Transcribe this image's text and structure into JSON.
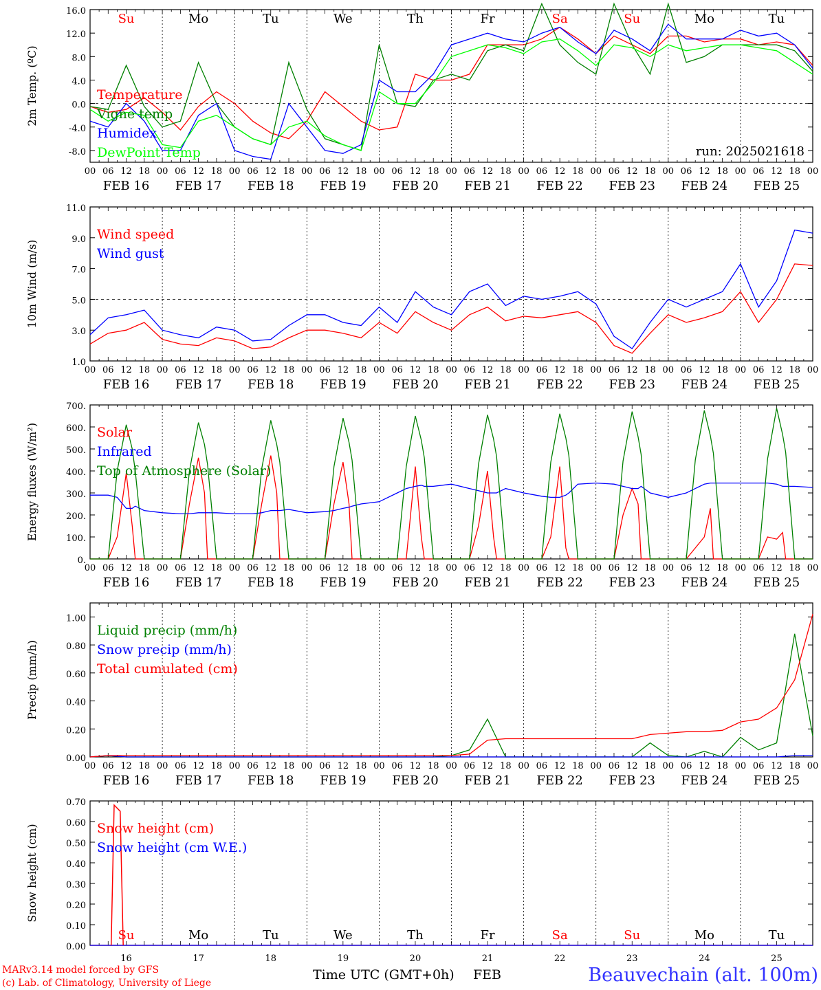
{
  "chart_data": [
    {
      "type": "line",
      "ylabel": "2m Temp. (ºC)",
      "ylim": [
        -10,
        16
      ],
      "yticks": [
        "16.0",
        "12.0",
        "8.0",
        "4.0",
        "0.0",
        "-4.0",
        "-8.0"
      ],
      "ytick_values": [
        16,
        12,
        8,
        4,
        0,
        -4,
        -8
      ],
      "ref_line": 0,
      "annotation": "run: 2025021618",
      "day_labels": [
        "Su",
        "Mo",
        "Tu",
        "We",
        "Th",
        "Fr",
        "Sa",
        "Su",
        "Mo",
        "Tu"
      ],
      "x_hours": [
        0,
        6,
        12,
        18,
        24,
        30,
        36,
        42,
        48,
        54,
        60,
        66,
        72,
        78,
        84,
        90,
        96,
        102,
        108,
        114,
        120,
        126,
        132,
        138,
        144,
        150,
        156,
        162,
        168,
        174,
        180,
        186,
        192,
        198,
        204,
        210,
        216,
        222,
        228,
        234,
        240
      ],
      "series": [
        {
          "name": "Temperature",
          "color": "#ff0000",
          "values": [
            -0.5,
            -1.5,
            -1.0,
            1.0,
            -1.5,
            -4.5,
            -0.5,
            2.0,
            0.0,
            -3.0,
            -5.0,
            -6.0,
            -3.0,
            2.0,
            -0.5,
            -3.0,
            -4.5,
            -4.0,
            5.0,
            4.0,
            4.0,
            5.0,
            10.0,
            10.0,
            10.0,
            11.0,
            13.0,
            11.0,
            8.5,
            11.5,
            10.0,
            8.5,
            11.5,
            11.5,
            10.5,
            11.0,
            11.0,
            10.0,
            10.5,
            10.0,
            6.5
          ]
        },
        {
          "name": "Vigne temp",
          "color": "#008000",
          "values": [
            -0.5,
            -1.0,
            6.5,
            -0.5,
            -4.0,
            -3.0,
            7.0,
            0.0,
            -4.0,
            -6.0,
            -7.0,
            7.0,
            -1.0,
            -6.0,
            -7.0,
            -8.0,
            10.0,
            0.0,
            -0.5,
            4.0,
            5.0,
            4.0,
            9.0,
            10.0,
            9.0,
            17.0,
            10.0,
            7.0,
            5.0,
            17.0,
            10.0,
            5.0,
            17.0,
            7.0,
            8.0,
            10.0,
            10.0,
            10.0,
            10.0,
            9.0,
            5.5
          ]
        },
        {
          "name": "Humidex",
          "color": "#0000ff",
          "values": [
            -3.0,
            -4.0,
            0.0,
            -3.0,
            -8.0,
            -8.0,
            -2.0,
            0.0,
            -8.0,
            -9.0,
            -9.5,
            0.0,
            -4.0,
            -8.0,
            -8.5,
            -7.0,
            4.0,
            2.0,
            2.0,
            5.0,
            10.0,
            11.0,
            12.0,
            11.0,
            10.5,
            12.0,
            13.0,
            10.5,
            8.5,
            12.5,
            11.0,
            9.0,
            13.5,
            11.0,
            11.0,
            11.0,
            12.5,
            11.5,
            12.0,
            10.0,
            6.0
          ]
        },
        {
          "name": "DewPoint Temp",
          "color": "#00ff00",
          "values": [
            -1.0,
            -3.0,
            -1.5,
            -2.0,
            -7.0,
            -7.5,
            -3.0,
            -2.0,
            -4.0,
            -6.0,
            -7.0,
            -4.0,
            -3.0,
            -5.5,
            -7.0,
            -8.0,
            2.0,
            0.0,
            0.0,
            3.5,
            8.0,
            9.0,
            10.0,
            9.5,
            8.5,
            10.5,
            11.0,
            9.0,
            6.5,
            10.0,
            9.5,
            8.0,
            10.0,
            9.0,
            9.5,
            10.0,
            10.0,
            9.5,
            9.0,
            7.0,
            5.0
          ]
        }
      ]
    },
    {
      "type": "line",
      "ylabel": "10m Wind (m/s)",
      "ylim": [
        1,
        11
      ],
      "yticks": [
        "11.0",
        "9.0",
        "7.0",
        "5.0",
        "3.0",
        "1.0"
      ],
      "ytick_values": [
        11,
        9,
        7,
        5,
        3,
        1
      ],
      "ref_line": 5,
      "x_hours": [
        0,
        6,
        12,
        18,
        24,
        30,
        36,
        42,
        48,
        54,
        60,
        66,
        72,
        78,
        84,
        90,
        96,
        102,
        108,
        114,
        120,
        126,
        132,
        138,
        144,
        150,
        156,
        162,
        168,
        174,
        180,
        186,
        192,
        198,
        204,
        210,
        216,
        222,
        228,
        234,
        240
      ],
      "series": [
        {
          "name": "Wind speed",
          "color": "#ff0000",
          "values": [
            2.1,
            2.8,
            3.0,
            3.5,
            2.4,
            2.1,
            2.0,
            2.5,
            2.3,
            1.8,
            1.9,
            2.5,
            3.0,
            3.0,
            2.8,
            2.5,
            3.5,
            2.8,
            4.2,
            3.5,
            3.0,
            4.0,
            4.5,
            3.6,
            3.9,
            3.8,
            4.0,
            4.2,
            3.5,
            2.0,
            1.5,
            2.8,
            4.0,
            3.5,
            3.8,
            4.2,
            5.5,
            3.5,
            5.0,
            7.3,
            7.2
          ]
        },
        {
          "name": "Wind gust",
          "color": "#0000ff",
          "values": [
            2.7,
            3.8,
            4.0,
            4.3,
            3.0,
            2.7,
            2.5,
            3.2,
            3.0,
            2.3,
            2.4,
            3.3,
            4.0,
            4.0,
            3.5,
            3.3,
            4.5,
            3.5,
            5.5,
            4.5,
            4.0,
            5.5,
            6.0,
            4.6,
            5.2,
            5.0,
            5.2,
            5.5,
            4.7,
            2.6,
            1.8,
            3.5,
            5.0,
            4.5,
            5.0,
            5.5,
            7.3,
            4.5,
            6.2,
            9.5,
            9.3
          ]
        }
      ]
    },
    {
      "type": "line",
      "ylabel": "Energy fluxes (W/m²)",
      "ylim": [
        0,
        700
      ],
      "yticks": [
        "700.",
        "600.",
        "500.",
        "400.",
        "300.",
        "200.",
        "100.",
        "0."
      ],
      "ytick_values": [
        700,
        600,
        500,
        400,
        300,
        200,
        100,
        0
      ],
      "x_hours": [
        0,
        6,
        9,
        12,
        14,
        15,
        18,
        24,
        30,
        33,
        36,
        38,
        39,
        42,
        48,
        54,
        57,
        60,
        62,
        63,
        66,
        72,
        78,
        81,
        84,
        86,
        87,
        90,
        96,
        102,
        105,
        108,
        110,
        111,
        114,
        120,
        126,
        129,
        132,
        134,
        135,
        138,
        144,
        150,
        153,
        156,
        158,
        159,
        162,
        168,
        174,
        177,
        180,
        182,
        183,
        186,
        192,
        198,
        201,
        204,
        206,
        207,
        210,
        216,
        222,
        225,
        228,
        230,
        231,
        234,
        240
      ],
      "series": [
        {
          "name": "Solar",
          "color": "#ff0000",
          "values": [
            0,
            0,
            100,
            390,
            150,
            0,
            0,
            0,
            0,
            250,
            460,
            300,
            0,
            0,
            0,
            0,
            250,
            470,
            300,
            0,
            0,
            0,
            0,
            250,
            440,
            250,
            0,
            0,
            0,
            0,
            0,
            420,
            100,
            0,
            0,
            0,
            0,
            150,
            400,
            100,
            0,
            0,
            0,
            0,
            100,
            420,
            50,
            0,
            0,
            0,
            0,
            200,
            320,
            250,
            0,
            0,
            0,
            0,
            50,
            100,
            230,
            0,
            0,
            0,
            0,
            100,
            90,
            120,
            0,
            0,
            0
          ]
        },
        {
          "name": "Infrared",
          "color": "#0000ff",
          "values": [
            290,
            290,
            280,
            230,
            230,
            240,
            220,
            210,
            205,
            205,
            210,
            210,
            210,
            210,
            205,
            205,
            210,
            220,
            220,
            220,
            225,
            210,
            215,
            220,
            230,
            235,
            240,
            250,
            260,
            300,
            320,
            330,
            335,
            330,
            330,
            340,
            320,
            310,
            300,
            300,
            300,
            320,
            300,
            285,
            280,
            280,
            290,
            300,
            340,
            345,
            340,
            330,
            320,
            320,
            330,
            300,
            280,
            300,
            320,
            340,
            345,
            345,
            345,
            345,
            345,
            345,
            340,
            330,
            330,
            330,
            325
          ]
        },
        {
          "name": "Top of Atmosphere (Solar)",
          "color": "#008000",
          "values": [
            0,
            0,
            400,
            610,
            500,
            400,
            0,
            0,
            0,
            400,
            620,
            520,
            430,
            0,
            0,
            0,
            410,
            630,
            520,
            440,
            0,
            0,
            0,
            420,
            640,
            530,
            450,
            0,
            0,
            0,
            420,
            650,
            540,
            460,
            0,
            0,
            0,
            430,
            655,
            545,
            465,
            0,
            0,
            0,
            440,
            660,
            550,
            470,
            0,
            0,
            0,
            445,
            670,
            555,
            475,
            0,
            0,
            0,
            450,
            675,
            560,
            480,
            0,
            0,
            0,
            455,
            685,
            565,
            485,
            0,
            0
          ]
        }
      ]
    },
    {
      "type": "line",
      "ylabel": "Precip (mm/h)",
      "ylim": [
        0,
        1.1
      ],
      "yticks": [
        "1.00",
        "0.80",
        "0.60",
        "0.40",
        "0.20",
        "0.00"
      ],
      "ytick_values": [
        1.0,
        0.8,
        0.6,
        0.4,
        0.2,
        0.0
      ],
      "x_hours": [
        0,
        6,
        12,
        18,
        24,
        30,
        36,
        42,
        48,
        54,
        60,
        66,
        72,
        78,
        84,
        90,
        96,
        102,
        108,
        114,
        120,
        126,
        132,
        138,
        144,
        150,
        156,
        162,
        168,
        174,
        180,
        186,
        192,
        198,
        204,
        210,
        216,
        222,
        228,
        234,
        240
      ],
      "series": [
        {
          "name": "Liquid precip (mm/h)",
          "color": "#008000",
          "values": [
            0,
            0.01,
            0,
            0,
            0,
            0,
            0,
            0,
            0,
            0,
            0,
            0,
            0,
            0,
            0,
            0,
            0,
            0,
            0,
            0,
            0.01,
            0.05,
            0.27,
            0,
            0,
            0,
            0,
            0,
            0,
            0,
            0,
            0.1,
            0.01,
            0,
            0.04,
            0,
            0.14,
            0.05,
            0.1,
            0.88,
            0.15
          ]
        },
        {
          "name": "Snow precip (mm/h)",
          "color": "#0000ff",
          "values": [
            0,
            0.01,
            0,
            0,
            0,
            0,
            0,
            0,
            0,
            0,
            0,
            0,
            0,
            0,
            0,
            0,
            0,
            0,
            0,
            0,
            0,
            0,
            0,
            0,
            0,
            0,
            0,
            0,
            0,
            0,
            0,
            0,
            0,
            0,
            0,
            0,
            0,
            0,
            0,
            0.01,
            0.01
          ]
        },
        {
          "name": "Total cumulated (cm)",
          "color": "#ff0000",
          "values": [
            0,
            0.01,
            0.01,
            0.01,
            0.01,
            0.01,
            0.01,
            0.01,
            0.01,
            0.01,
            0.01,
            0.01,
            0.01,
            0.01,
            0.01,
            0.01,
            0.01,
            0.01,
            0.01,
            0.01,
            0.01,
            0.02,
            0.12,
            0.13,
            0.13,
            0.13,
            0.13,
            0.13,
            0.13,
            0.13,
            0.13,
            0.16,
            0.17,
            0.18,
            0.18,
            0.19,
            0.25,
            0.27,
            0.35,
            0.55,
            1.02
          ]
        }
      ]
    },
    {
      "type": "line",
      "ylabel": "Snow height (cm)",
      "ylim": [
        0,
        0.7
      ],
      "yticks": [
        "0.70",
        "0.60",
        "0.50",
        "0.40",
        "0.30",
        "0.20",
        "0.10",
        "0.00"
      ],
      "ytick_values": [
        0.7,
        0.6,
        0.5,
        0.4,
        0.3,
        0.2,
        0.1,
        0.0
      ],
      "day_labels": [
        "Su",
        "Mo",
        "Tu",
        "We",
        "Th",
        "Fr",
        "Sa",
        "Su",
        "Mo",
        "Tu"
      ],
      "day_numbers": [
        "16",
        "17",
        "18",
        "19",
        "20",
        "21",
        "22",
        "23",
        "24",
        "25"
      ],
      "xlabel": "Time UTC (GMT+0h)",
      "xlabel_month": "FEB",
      "x_hours": [
        0,
        6,
        12,
        18,
        24,
        30,
        36,
        42,
        48,
        54,
        60,
        66,
        72,
        78,
        84,
        90,
        96,
        102,
        108,
        114,
        120,
        126,
        132,
        138,
        144,
        150,
        156,
        162,
        168,
        174,
        180,
        186,
        192,
        198,
        204,
        210,
        216,
        222,
        228,
        234,
        240
      ],
      "series": [
        {
          "name": "Snow height (cm)",
          "color": "#ff0000",
          "values": [
            0,
            0,
            0,
            0,
            0,
            0,
            0,
            0,
            0,
            0,
            0,
            0,
            0,
            0,
            0,
            0,
            0,
            0,
            0,
            0,
            0,
            0,
            0,
            0,
            0,
            0,
            0,
            0,
            0,
            0,
            0,
            0,
            0,
            0,
            0,
            0,
            0,
            0,
            0,
            0,
            0
          ]
        },
        {
          "name": "Snow height (cm W.E.)",
          "color": "#0000ff",
          "values": [
            0,
            0,
            0,
            0,
            0,
            0,
            0,
            0,
            0,
            0,
            0,
            0,
            0,
            0,
            0,
            0,
            0,
            0,
            0,
            0,
            0,
            0,
            0,
            0,
            0,
            0,
            0,
            0,
            0,
            0,
            0,
            0,
            0,
            0,
            0,
            0,
            0,
            0,
            0,
            0,
            0
          ]
        }
      ],
      "spike": {
        "x_hours": [
          7,
          8,
          10,
          11
        ],
        "values": [
          0,
          0.68,
          0.65,
          0
        ]
      }
    }
  ],
  "x_tick_labels": [
    "00",
    "06",
    "12",
    "18"
  ],
  "date_labels": [
    "FEB 16",
    "FEB 17",
    "FEB 18",
    "FEB 19",
    "FEB 20",
    "FEB 21",
    "FEB 22",
    "FEB 23",
    "FEB 24",
    "FEB 25"
  ],
  "weekend_color": "#ff0000",
  "weekday_color": "#000000",
  "weekend_days": [
    0,
    6,
    7
  ],
  "footer": {
    "credit_1": "MARv3.14 model forced by GFS",
    "credit_2": "(c) Lab. of Climatology, University of Liege",
    "station": "Beauvechain (alt. 100m)",
    "station_color": "#3333ff",
    "credit_color": "#ff0000"
  }
}
